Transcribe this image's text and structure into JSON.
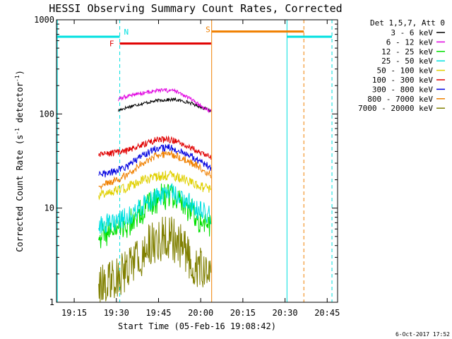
{
  "chart_data": {
    "type": "line",
    "title": "HESSI Observing Summary Count Rates, Corrected",
    "xlabel": "Start Time (05-Feb-16 19:08:42)",
    "ylabel_main": "Corrected Count Rate (s",
    "ylabel_sup1": "-1",
    "ylabel_mid": " detector",
    "ylabel_sup2": "-1",
    "ylabel_end": ")",
    "x_unit": "minutes after 19:08:42",
    "xlim": [
      0,
      100
    ],
    "y_scale": "log",
    "ylim": [
      1,
      1000
    ],
    "x_ticks": [
      {
        "label": "19:15",
        "x": 6.3
      },
      {
        "label": "19:30",
        "x": 21.3
      },
      {
        "label": "19:45",
        "x": 36.3
      },
      {
        "label": "20:00",
        "x": 51.3
      },
      {
        "label": "20:15",
        "x": 66.3
      },
      {
        "label": "20:30",
        "x": 81.3
      },
      {
        "label": "20:45",
        "x": 96.3
      }
    ],
    "y_ticks": [
      {
        "label": "1",
        "y": 1
      },
      {
        "label": "10",
        "y": 10
      },
      {
        "label": "100",
        "y": 100
      },
      {
        "label": "1000",
        "y": 1000
      }
    ],
    "legend_header": "Det 1,5,7, Att 0",
    "legend_placement": "right",
    "series": [
      {
        "name": "3 - 6 keV",
        "color": "#000000",
        "x": [
          22,
          23,
          27,
          32,
          37,
          42,
          47,
          51,
          55
        ],
        "y": [
          108,
          112,
          122,
          132,
          140,
          142,
          133,
          120,
          108
        ]
      },
      {
        "name": "6 - 12 keV",
        "color": "#e000e0",
        "x": [
          22,
          23,
          27,
          32,
          37,
          42,
          47,
          51,
          55
        ],
        "y": [
          140,
          148,
          160,
          170,
          178,
          176,
          148,
          123,
          105
        ]
      },
      {
        "name": "12 - 25 keV",
        "color": "#00e000",
        "x": [
          15,
          20,
          25,
          30,
          35,
          40,
          45,
          50,
          55
        ],
        "y": [
          5.2,
          5.8,
          6.5,
          9,
          12,
          14,
          11,
          8,
          6.3
        ]
      },
      {
        "name": "25 - 50 keV",
        "color": "#00e0e0",
        "x": [
          15,
          20,
          25,
          30,
          35,
          40,
          45,
          50,
          55
        ],
        "y": [
          6.6,
          7,
          8,
          10.3,
          12.8,
          14.8,
          12.5,
          10,
          8.2
        ]
      },
      {
        "name": "50 - 100 keV",
        "color": "#e0d000",
        "x": [
          15,
          20,
          25,
          30,
          35,
          40,
          45,
          50,
          55
        ],
        "y": [
          14,
          14.8,
          16.6,
          19.5,
          21.4,
          22.4,
          20.3,
          17.4,
          15.7
        ]
      },
      {
        "name": "100 - 300 keV",
        "color": "#e00000",
        "x": [
          15,
          20,
          25,
          30,
          35,
          40,
          45,
          50,
          55
        ],
        "y": [
          36.3,
          38.3,
          40.4,
          46.5,
          52.7,
          53.6,
          48.9,
          40,
          34.9
        ]
      },
      {
        "name": "300 - 800 keV",
        "color": "#0000e0",
        "x": [
          15,
          20,
          25,
          30,
          35,
          40,
          45,
          50,
          55
        ],
        "y": [
          22.3,
          24,
          27.3,
          35.6,
          42.1,
          44.1,
          39.8,
          32.7,
          26.6
        ]
      },
      {
        "name": "800 - 7000 keV",
        "color": "#f08000",
        "x": [
          15,
          20,
          25,
          30,
          35,
          40,
          45,
          50,
          55
        ],
        "y": [
          17.2,
          19,
          22.3,
          29.3,
          35.2,
          38.4,
          33.4,
          28.1,
          22.4
        ]
      },
      {
        "name": "7000 - 20000 keV",
        "color": "#808000",
        "x": [
          15,
          20,
          25,
          30,
          35,
          40,
          45,
          50,
          55
        ],
        "y": [
          1.5,
          1.8,
          2.3,
          3.2,
          4.5,
          5,
          3.8,
          2.4,
          1.9
        ]
      }
    ],
    "flags": [
      {
        "label": "F",
        "color": "#e00000",
        "y": 560,
        "x_start": 22.5,
        "x_end": 55
      },
      {
        "label": "N",
        "color": "#00e0e0",
        "y": 660,
        "x_start": 0,
        "x_end": 22.5
      },
      {
        "label": "S",
        "color": "#f08000",
        "y": 750,
        "x_start": 55.2,
        "x_end": 88
      }
    ],
    "cyan_segment": {
      "color": "#00e0e0",
      "y": 660,
      "x_start": 82,
      "x_end": 98
    },
    "vertical_lines": [
      {
        "x": 0.3,
        "color": "#00e0e0",
        "style": "solid"
      },
      {
        "x": 22.5,
        "color": "#00e0e0",
        "style": "dashed"
      },
      {
        "x": 55.2,
        "color": "#f08000",
        "style": "solid"
      },
      {
        "x": 82,
        "color": "#00e0e0",
        "style": "solid"
      },
      {
        "x": 88,
        "color": "#f08000",
        "style": "dashed"
      },
      {
        "x": 98,
        "color": "#00e0e0",
        "style": "dashed"
      }
    ]
  },
  "footer_stamp": "6-Oct-2017 17:52"
}
